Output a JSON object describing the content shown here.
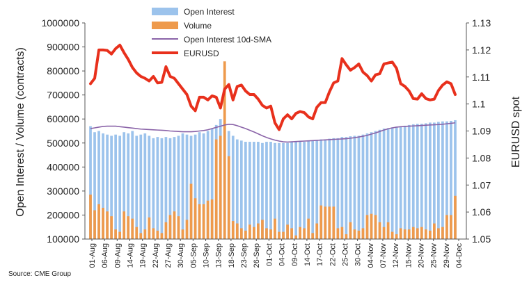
{
  "chart_data": {
    "type": "bar",
    "ylabel": "Open Interest / Volume (contracts)",
    "y2label": "EURUSD spot",
    "ylim": [
      100000,
      1000000
    ],
    "y2lim": [
      1.05,
      1.13
    ],
    "yticks": [
      "1000000",
      "900000",
      "800000",
      "700000",
      "600000",
      "500000",
      "400000",
      "300000",
      "200000",
      "100000"
    ],
    "y2ticks": [
      "1.13",
      "1.12",
      "1.11",
      "1.1",
      "1.09",
      "1.08",
      "1.07",
      "1.06",
      "1.05"
    ],
    "x_tick_labels": [
      "01-Aug",
      "06-Aug",
      "09-Aug",
      "14-Aug",
      "19-Aug",
      "22-Aug",
      "27-Aug",
      "30-Aug",
      "05-Sep",
      "10-Sep",
      "13-Sep",
      "18-Sep",
      "23-Sep",
      "26-Sep",
      "01-Oct",
      "04-Oct",
      "09-Oct",
      "14-Oct",
      "17-Oct",
      "22-Oct",
      "25-Oct",
      "30-Oct",
      "04-Nov",
      "07-Nov",
      "12-Nov",
      "15-Nov",
      "20-Nov",
      "25-Nov",
      "29-Nov",
      "04-Dec"
    ],
    "legend": [
      "Open Interest",
      "Volume",
      "Open Interest 10d-SMA",
      "EURUSD"
    ],
    "colors": {
      "open_interest": "#9cc3ec",
      "volume": "#ee9a4c",
      "sma": "#8a63a8",
      "eurusd": "#e8301c"
    },
    "series": [
      {
        "name": "Open Interest",
        "values": [
          570000,
          545000,
          550000,
          540000,
          535000,
          530000,
          535000,
          530000,
          545000,
          540000,
          550000,
          530000,
          535000,
          540000,
          530000,
          520000,
          525000,
          520000,
          525000,
          520000,
          525000,
          530000,
          540000,
          535000,
          530000,
          535000,
          545000,
          540000,
          550000,
          560000,
          575000,
          600000,
          580000,
          550000,
          530000,
          515000,
          510000,
          505000,
          505000,
          505000,
          505000,
          500000,
          505000,
          505000,
          500000,
          500000,
          500000,
          500000,
          505000,
          505000,
          505000,
          505000,
          510000,
          510000,
          512000,
          515000,
          515000,
          518000,
          520000,
          520000,
          525000,
          525000,
          528000,
          530000,
          530000,
          535000,
          540000,
          545000,
          550000,
          555000,
          560000,
          562000,
          565000,
          568000,
          570000,
          572000,
          575000,
          578000,
          580000,
          580000,
          582000,
          585000,
          585000,
          588000,
          590000,
          590000,
          592000,
          595000
        ]
      },
      {
        "name": "Volume",
        "values": [
          285000,
          220000,
          245000,
          230000,
          215000,
          195000,
          140000,
          130000,
          215000,
          195000,
          185000,
          150000,
          125000,
          140000,
          190000,
          145000,
          135000,
          125000,
          170000,
          200000,
          215000,
          195000,
          140000,
          180000,
          330000,
          270000,
          245000,
          245000,
          260000,
          265000,
          515000,
          530000,
          840000,
          445000,
          175000,
          165000,
          145000,
          135000,
          160000,
          150000,
          165000,
          180000,
          145000,
          140000,
          185000,
          130000,
          130000,
          160000,
          145000,
          115000,
          150000,
          145000,
          185000,
          125000,
          165000,
          240000,
          235000,
          235000,
          235000,
          145000,
          150000,
          120000,
          170000,
          140000,
          135000,
          145000,
          200000,
          205000,
          200000,
          170000,
          150000,
          170000,
          130000,
          120000,
          145000,
          140000,
          140000,
          150000,
          145000,
          150000,
          140000,
          135000,
          165000,
          145000,
          150000,
          200000,
          200000,
          280000
        ]
      },
      {
        "name": "Open Interest 10d-SMA",
        "values": [
          560000,
          563000,
          566000,
          569000,
          570000,
          570000,
          570000,
          568000,
          566000,
          564000,
          562000,
          560000,
          558000,
          557000,
          556000,
          555000,
          554000,
          553000,
          552000,
          550000,
          549000,
          548000,
          547000,
          547000,
          547000,
          548000,
          550000,
          552000,
          555000,
          560000,
          565000,
          570000,
          575000,
          578000,
          577000,
          572000,
          566000,
          560000,
          553000,
          546000,
          538000,
          530000,
          523000,
          517000,
          512000,
          508000,
          505000,
          504000,
          505000,
          506000,
          507000,
          508000,
          509000,
          510000,
          511000,
          512000,
          513000,
          514000,
          515000,
          516000,
          517000,
          518000,
          520000,
          522000,
          525000,
          528000,
          532000,
          537000,
          542000,
          548000,
          554000,
          559000,
          563000,
          566000,
          568000,
          569000,
          570000,
          571000,
          572000,
          573000,
          574000,
          575000,
          576000,
          577000,
          578000,
          580000,
          582000,
          584000
        ]
      },
      {
        "name": "EURUSD",
        "values": [
          1.1075,
          1.1095,
          1.12,
          1.12,
          1.1198,
          1.1185,
          1.1205,
          1.1218,
          1.119,
          1.1165,
          1.1135,
          1.1115,
          1.1102,
          1.1095,
          1.1085,
          1.1102,
          1.1078,
          1.108,
          1.1138,
          1.1102,
          1.1095,
          1.1075,
          1.1055,
          1.1035,
          1.0992,
          1.0975,
          1.1025,
          1.1025,
          1.1015,
          1.103,
          1.1025,
          1.0985,
          1.1055,
          1.1072,
          1.1015,
          1.1065,
          1.107,
          1.1048,
          1.1035,
          1.1035,
          1.1018,
          1.0995,
          1.0985,
          1.0992,
          1.093,
          1.0905,
          1.0945,
          1.096,
          1.0945,
          1.0965,
          1.0972,
          1.0968,
          1.0952,
          1.0945,
          1.0988,
          1.1005,
          1.1005,
          1.1045,
          1.1078,
          1.1085,
          1.1168,
          1.1145,
          1.1125,
          1.1135,
          1.1148,
          1.1118,
          1.1105,
          1.1085,
          1.1108,
          1.1112,
          1.1148,
          1.1152,
          1.1155,
          1.1132,
          1.1075,
          1.1065,
          1.1048,
          1.102,
          1.1018,
          1.1038,
          1.102,
          1.1015,
          1.1018,
          1.105,
          1.107,
          1.1082,
          1.1075,
          1.1035
        ]
      }
    ]
  },
  "footer": {
    "source": "Source: CME Group"
  }
}
